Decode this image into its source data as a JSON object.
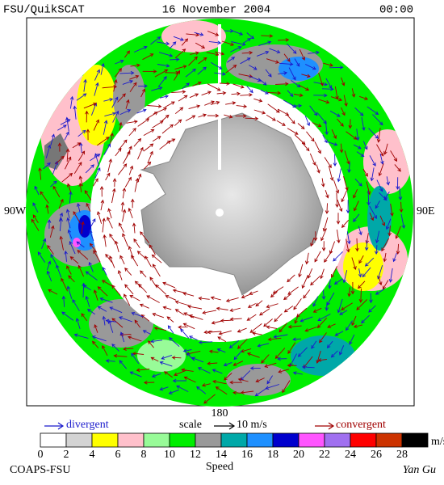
{
  "header": {
    "left": "FSU/QuikSCAT",
    "center": "16 November 2004",
    "right": "00:00"
  },
  "map": {
    "label_west": "90W",
    "label_east": "90E",
    "label_south": "180"
  },
  "legend": {
    "divergent": "divergent",
    "divergent_color": "#1a1acc",
    "scale": "scale",
    "scale_value": "10 m/s",
    "convergent": "convergent",
    "convergent_color": "#a00000"
  },
  "colorbar": {
    "ticks": [
      0,
      2,
      4,
      6,
      8,
      10,
      12,
      14,
      16,
      18,
      20,
      22,
      24,
      26,
      28
    ],
    "colors": [
      "#ffffff",
      "#d3d3d3",
      "#ffff00",
      "#ffc0cb",
      "#98fb98",
      "#00ee00",
      "#999999",
      "#00a8a8",
      "#1e90ff",
      "#0000cd",
      "#ff55ff",
      "#a070f0",
      "#ff0000",
      "#cc3300",
      "#000000"
    ],
    "unit": "m/s",
    "label": "Speed"
  },
  "footer": {
    "left": "COAPS-FSU",
    "right": "Yan Gu"
  }
}
